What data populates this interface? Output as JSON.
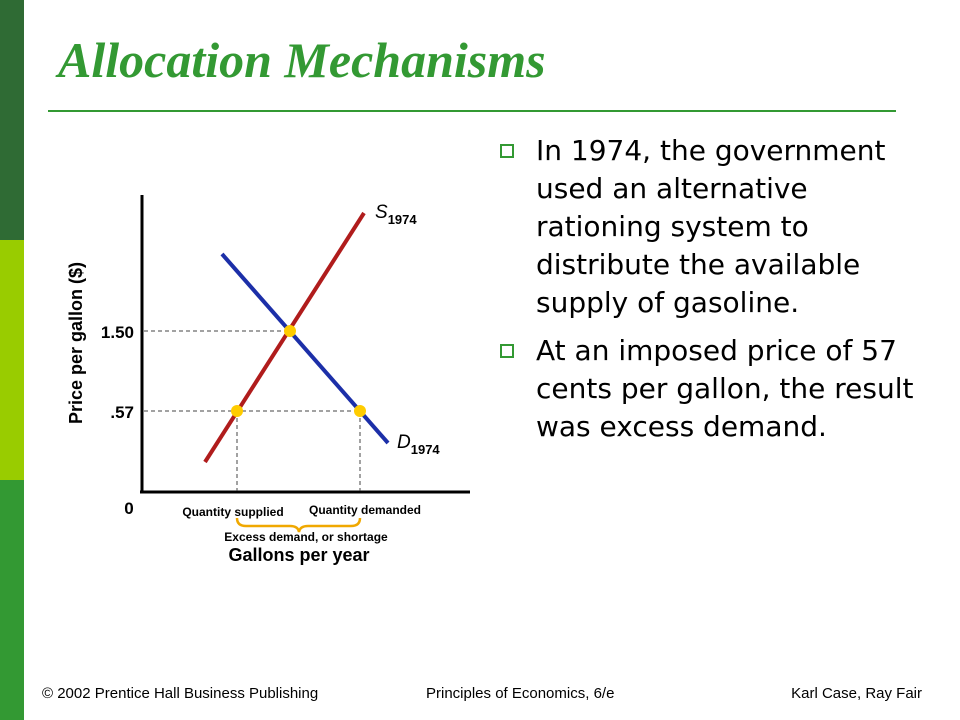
{
  "slide": {
    "title": "Allocation Mechanisms",
    "bullets": [
      "In 1974, the government used an alternative rationing system to distribute the available supply of gasoline.",
      "At an imposed price of 57 cents per gallon, the result was excess demand."
    ],
    "footer": {
      "left": "© 2002 Prentice Hall Business Publishing",
      "center": "Principles of Economics, 6/e",
      "right": "Karl Case, Ray Fair"
    }
  },
  "colors": {
    "title": "#339933",
    "bar_top": "#2f6b34",
    "bar_mid": "#99cc00",
    "bar_bottom": "#339933",
    "supply": "#b01c1c",
    "demand": "#1c2fa8",
    "points": "#ffcc00",
    "brace": "#f0a800"
  },
  "diagram": {
    "ylabel": "Price per gallon ($)",
    "xlabel": "Gallons per year",
    "origin": "0",
    "price_high": "1.50",
    "price_low": ".57",
    "supply_label": "S",
    "supply_sub": "1974",
    "demand_label": "D",
    "demand_sub": "1974",
    "qs_label": "Quantity supplied",
    "qd_label": "Quantity demanded",
    "brace_label": "Excess demand, or shortage"
  }
}
